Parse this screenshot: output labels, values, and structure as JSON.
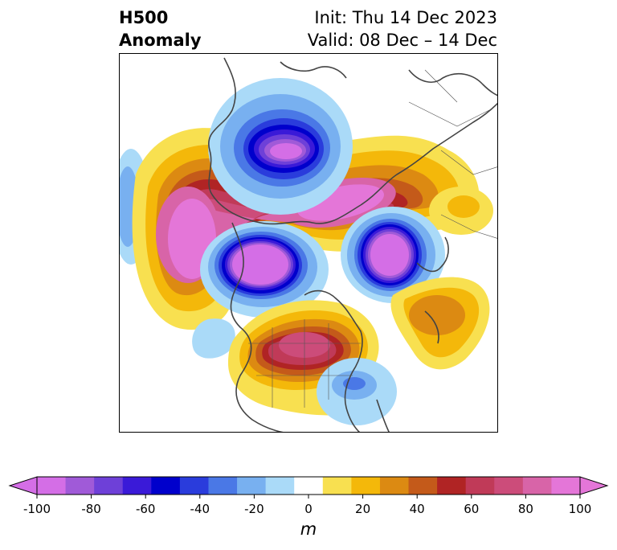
{
  "title": {
    "left_line1": "H500",
    "left_line2": "Anomaly",
    "right_line1": "Init: Thu 14 Dec 2023",
    "right_line2": "Valid: 08 Dec – 14 Dec"
  },
  "colorbar": {
    "unit": "m",
    "tick_labels": [
      "-100",
      "-80",
      "-60",
      "-40",
      "-20",
      "0",
      "20",
      "40",
      "60",
      "80",
      "100"
    ],
    "colors": [
      "#d46ee6",
      "#a05ad8",
      "#6e40d8",
      "#3a1ad8",
      "#0000cc",
      "#2a3cdc",
      "#4a78e6",
      "#78b0f0",
      "#aadaf8",
      "#ffffff",
      "#f8e050",
      "#f4b80a",
      "#dc8a12",
      "#c45a1a",
      "#b02424",
      "#c03a58",
      "#cc4c7a",
      "#d864a8",
      "#e476d8"
    ],
    "extend_low_color": "#d46ee6",
    "extend_high_color": "#e476d8"
  },
  "map": {
    "region": "North America / Arctic polar projection",
    "field": "500 hPa geopotential height anomaly"
  }
}
